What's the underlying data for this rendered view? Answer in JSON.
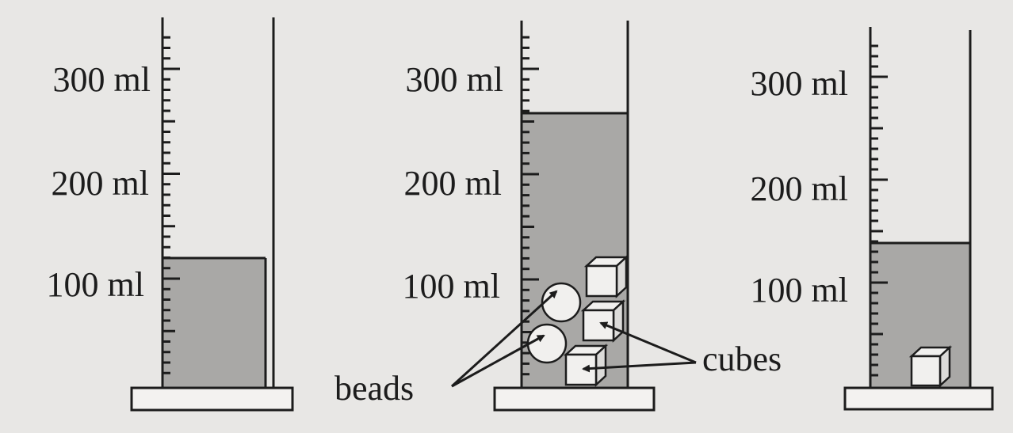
{
  "colors": {
    "background": "#e8e7e5",
    "ink": "#1c1c1c",
    "water": "#a9a8a6",
    "base": "#f3f2f0",
    "object_fill": "#f1f0ee"
  },
  "cylinders": [
    {
      "id": "left",
      "scale_labels": [
        "300 ml",
        "200 ml",
        "100 ml"
      ],
      "water_level_ml": 125,
      "contents": []
    },
    {
      "id": "middle",
      "scale_labels": [
        "300 ml",
        "200 ml",
        "100 ml"
      ],
      "water_level_ml": 265,
      "contents": [
        "bead",
        "bead",
        "cube",
        "cube",
        "cube"
      ]
    },
    {
      "id": "right",
      "scale_labels": [
        "300 ml",
        "200 ml",
        "100 ml"
      ],
      "water_level_ml": 140,
      "contents": [
        "cube"
      ]
    }
  ],
  "callouts": {
    "beads": "beads",
    "cubes": "cubes"
  }
}
